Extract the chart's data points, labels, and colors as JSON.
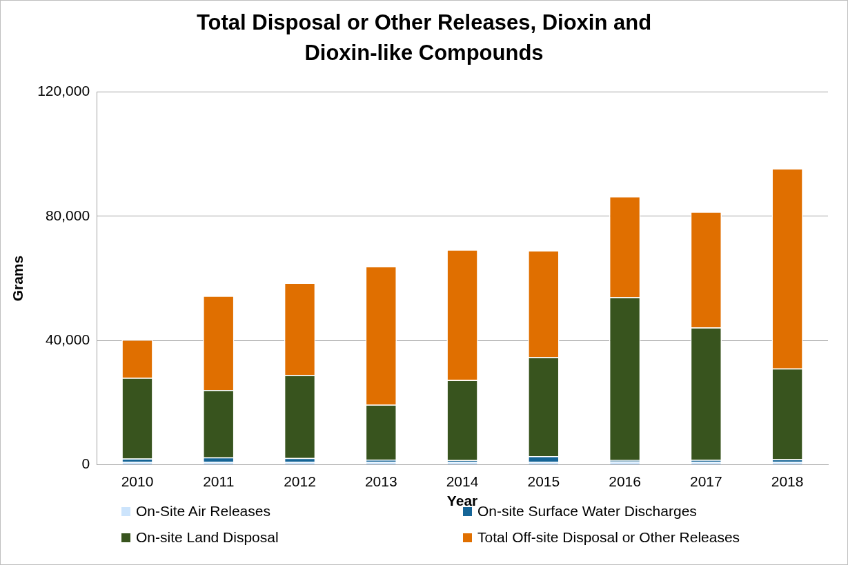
{
  "chart_data": {
    "type": "bar",
    "title": "Total Disposal or Other Releases, Dioxin and Dioxin-like Compounds",
    "xlabel": "Year",
    "ylabel": "Grams",
    "categories": [
      "2010",
      "2011",
      "2012",
      "2013",
      "2014",
      "2015",
      "2016",
      "2017",
      "2018"
    ],
    "stacked": true,
    "series": [
      {
        "name": "On-Site Air Releases",
        "color": "#cce4fc",
        "values": [
          1000,
          1000,
          1000,
          1000,
          1000,
          1000,
          1100,
          1000,
          1000
        ]
      },
      {
        "name": "On-site Surface Water Discharges",
        "color": "#156597",
        "values": [
          1000,
          1400,
          1200,
          700,
          500,
          1800,
          400,
          600,
          800
        ]
      },
      {
        "name": "On-site Land Disposal",
        "color": "#38541e",
        "values": [
          26000,
          21700,
          26700,
          17700,
          25800,
          31900,
          52500,
          42600,
          29200
        ]
      },
      {
        "name": "Total Off-site Disposal or Other Releases",
        "color": "#e06f00",
        "values": [
          12300,
          30300,
          29700,
          44500,
          42000,
          34300,
          32400,
          37300,
          64400
        ]
      }
    ],
    "ylim": [
      0,
      120000
    ],
    "yticks": [
      {
        "value": 0,
        "label": "0"
      },
      {
        "value": 40000,
        "label": "40,000"
      },
      {
        "value": 80000,
        "label": "80,000"
      },
      {
        "value": 120000,
        "label": "120,000"
      }
    ],
    "grid": "y",
    "legend": "bottom"
  }
}
